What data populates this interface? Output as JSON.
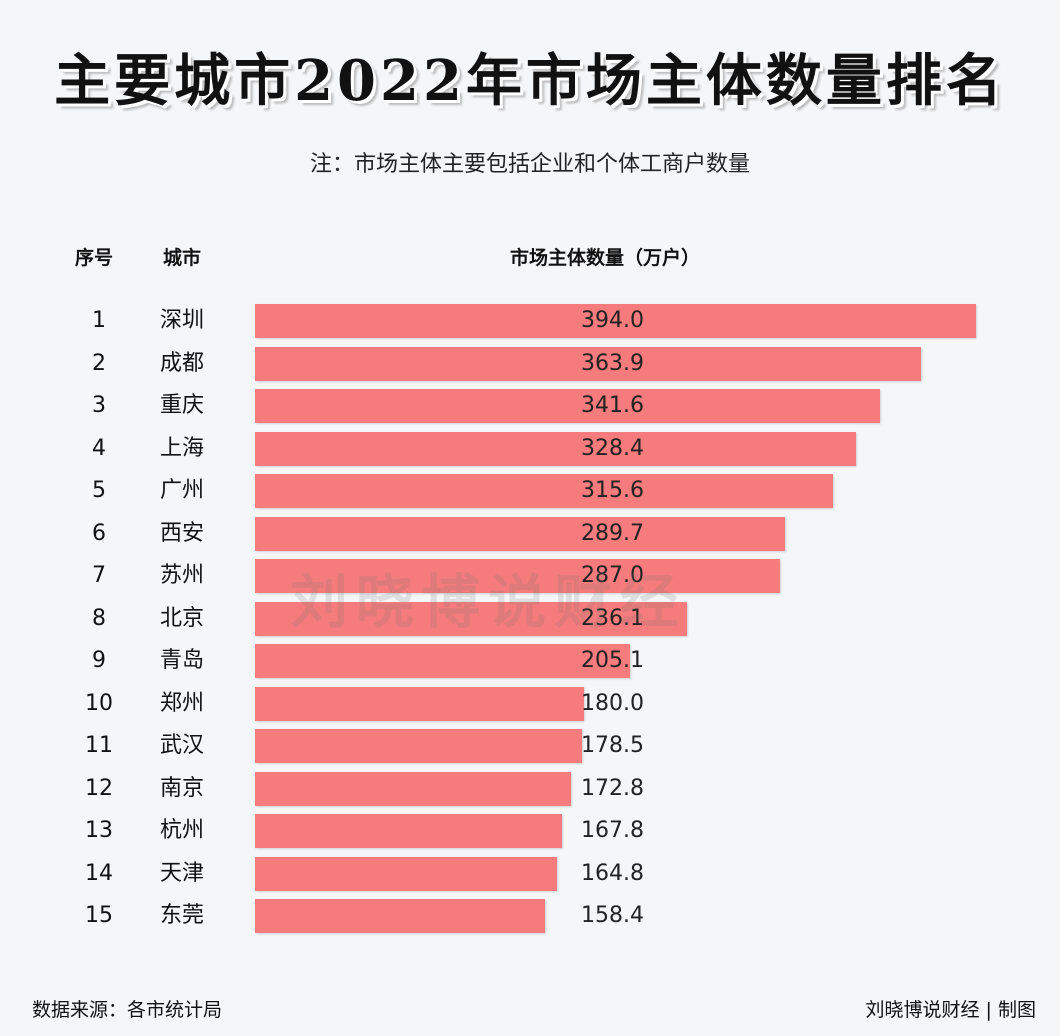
{
  "title": "主要城市2022年市场主体数量排名",
  "note": "注：市场主体主要包括企业和个体工商户数量",
  "watermark": "刘晓博说财经",
  "footer": {
    "source": "数据来源：各市统计局",
    "credit": "刘晓博说财经 | 制图"
  },
  "chart_data": {
    "type": "bar",
    "orientation": "horizontal",
    "columns": [
      "序号",
      "城市",
      "市场主体数量（万户）"
    ],
    "ranks": [
      "1",
      "2",
      "3",
      "4",
      "5",
      "6",
      "7",
      "8",
      "9",
      "10",
      "11",
      "12",
      "13",
      "14",
      "15"
    ],
    "categories": [
      "深圳",
      "成都",
      "重庆",
      "上海",
      "广州",
      "西安",
      "苏州",
      "北京",
      "青岛",
      "郑州",
      "武汉",
      "南京",
      "杭州",
      "天津",
      "东莞"
    ],
    "values": [
      394.0,
      363.9,
      341.6,
      328.4,
      315.6,
      289.7,
      287.0,
      236.1,
      205.1,
      180.0,
      178.5,
      172.8,
      167.8,
      164.8,
      158.4
    ],
    "value_labels": [
      "394.0",
      "363.9",
      "341.6",
      "328.4",
      "315.6",
      "289.7",
      "287.0",
      "236.1",
      "205.1",
      "180.0",
      "178.5",
      "172.8",
      "167.8",
      "164.8",
      "158.4"
    ],
    "xlim": [
      0,
      394
    ],
    "grid": false,
    "bar_color": "#f67b7c"
  }
}
